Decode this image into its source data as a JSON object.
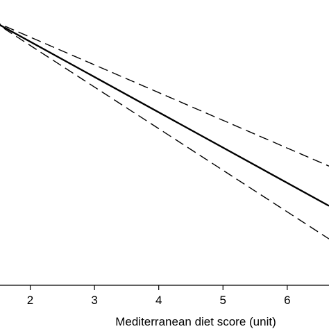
{
  "chart_data": {
    "type": "line",
    "xlabel": "Mediterranean diet score (unit)",
    "ylabel": "",
    "title": "",
    "x_ticks": [
      2,
      3,
      4,
      5,
      6
    ],
    "xlim": [
      1.4,
      6.65
    ],
    "y_values_note": "",
    "series": [
      {
        "style": "solid",
        "x": [
          1.4,
          6.65
        ],
        "y": [
          1.0,
          0.72
        ]
      },
      {
        "style": "dashed",
        "x": [
          1.4,
          6.65
        ],
        "y": [
          1.0,
          0.78
        ]
      },
      {
        "style": "dashed",
        "x": [
          1.4,
          6.65
        ],
        "y": [
          1.0,
          0.67
        ]
      }
    ],
    "ylim": [
      0.6,
      1.01
    ],
    "grid": false,
    "line_color": "#000000"
  }
}
